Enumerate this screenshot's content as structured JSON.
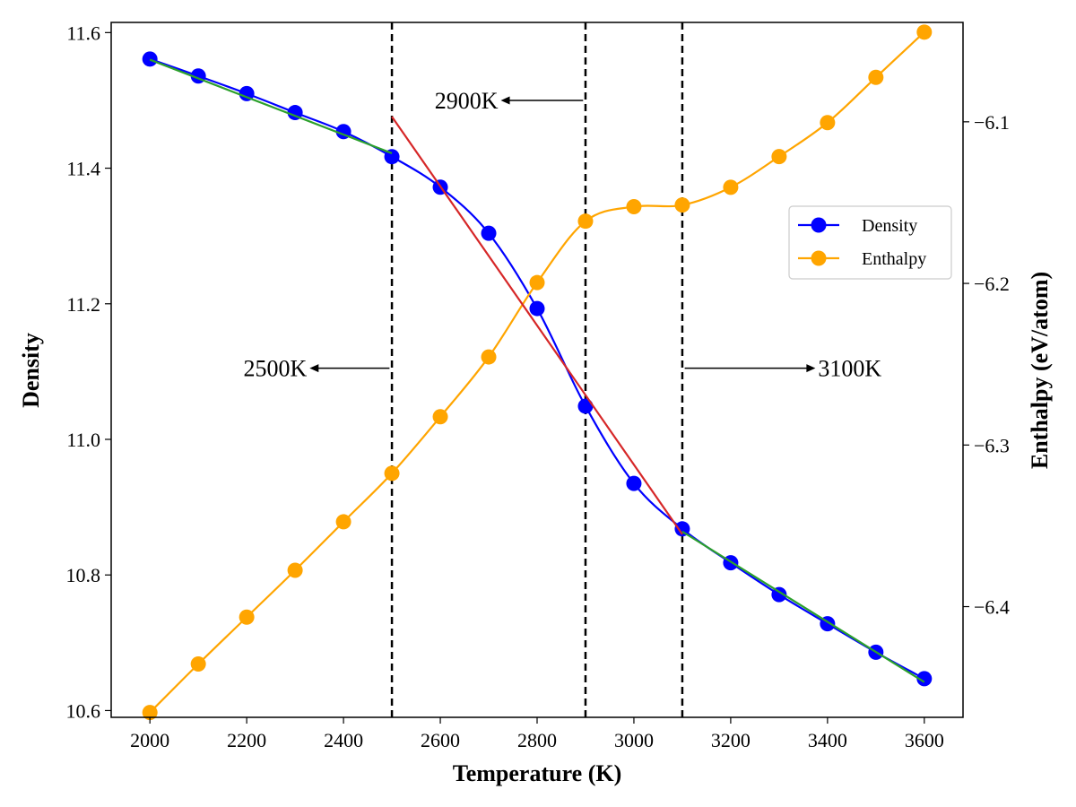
{
  "chart_data": {
    "type": "line",
    "xlabel": "Temperature (K)",
    "ylabel_left": "Density",
    "ylabel_right": "Enthalpy (eV/atom)",
    "xlim": [
      1920,
      3680
    ],
    "ylim_left": [
      10.59,
      11.615
    ],
    "ylim_right": [
      -6.4685,
      -6.0385
    ],
    "x_ticks": [
      2000,
      2200,
      2400,
      2600,
      2800,
      3000,
      3200,
      3400,
      3600
    ],
    "y_left_ticks": [
      "10.6",
      "10.8",
      "11.0",
      "11.2",
      "11.4",
      "11.6"
    ],
    "y_right_ticks": [
      "−6.4",
      "−6.3",
      "−6.2",
      "−6.1"
    ],
    "legend": {
      "position": "center-right",
      "entries": [
        "Density",
        "Enthalpy"
      ]
    },
    "series": [
      {
        "name": "Density",
        "axis": "left",
        "color": "#0000ff",
        "x": [
          2000,
          2100,
          2200,
          2300,
          2400,
          2500,
          2600,
          2700,
          2800,
          2900,
          3000,
          3100,
          3200,
          3300,
          3400,
          3500,
          3600
        ],
        "values": [
          11.561,
          11.536,
          11.51,
          11.482,
          11.454,
          11.417,
          11.372,
          11.304,
          11.193,
          11.049,
          10.935,
          10.868,
          10.818,
          10.771,
          10.728,
          10.686,
          10.647
        ]
      },
      {
        "name": "Enthalpy",
        "axis": "right",
        "color": "#ffa500",
        "x": [
          2000,
          2100,
          2200,
          2300,
          2400,
          2500,
          2600,
          2700,
          2800,
          2900,
          3000,
          3100,
          3200,
          3300,
          3400,
          3500,
          3600
        ],
        "values": [
          -6.4655,
          -6.4355,
          -6.4065,
          -6.3775,
          -6.3475,
          -6.3175,
          -6.2825,
          -6.2455,
          -6.1995,
          -6.1615,
          -6.1525,
          -6.1515,
          -6.1405,
          -6.1215,
          -6.1005,
          -6.0725,
          -6.0445
        ]
      }
    ],
    "fit_lines": [
      {
        "color": "#2ca02c",
        "x": [
          2000,
          2500
        ],
        "values": [
          11.56,
          11.422
        ]
      },
      {
        "color": "#d62728",
        "x": [
          2500,
          3100
        ],
        "values": [
          11.476,
          10.86
        ]
      },
      {
        "color": "#2ca02c",
        "x": [
          3100,
          3600
        ],
        "values": [
          10.864,
          10.642
        ]
      }
    ],
    "vlines": [
      2500,
      2900,
      3100
    ],
    "annotations": [
      {
        "text": "2500K",
        "x_from": 2495,
        "x_to": 2330,
        "y": 11.105,
        "side": "left"
      },
      {
        "text": "2900K",
        "x_from": 2895,
        "x_to": 2725,
        "y": 11.5,
        "side": "left"
      },
      {
        "text": "3100K",
        "x_from": 3105,
        "x_to": 3375,
        "y": 11.105,
        "side": "right"
      }
    ]
  }
}
